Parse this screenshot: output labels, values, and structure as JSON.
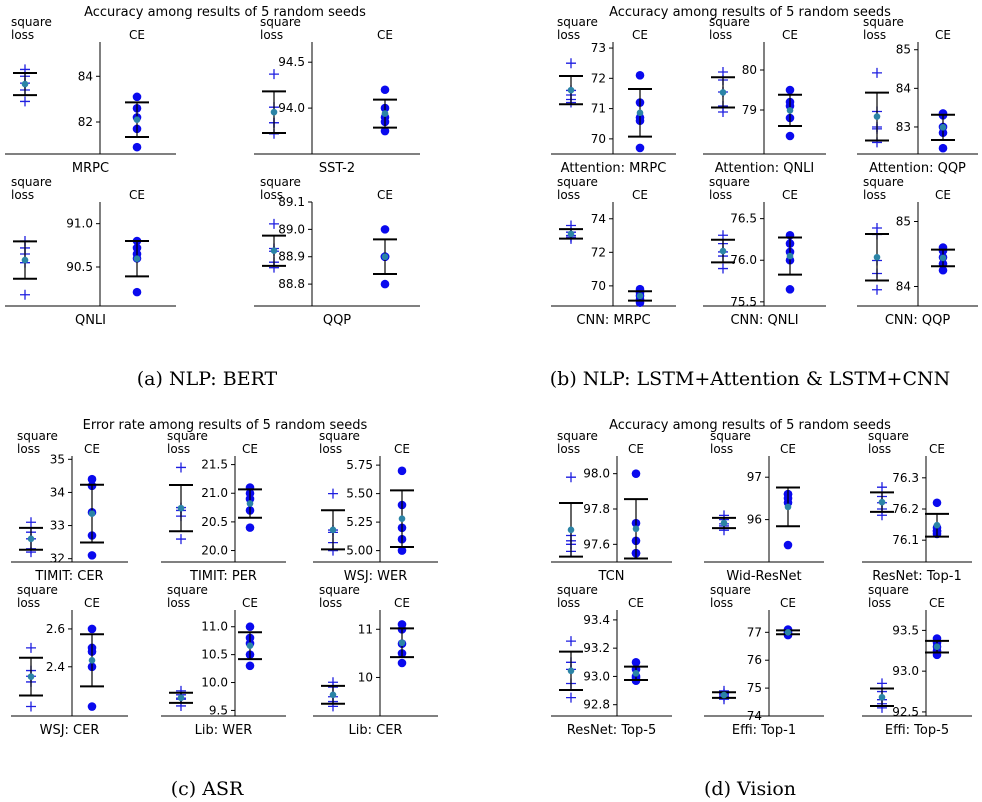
{
  "chart_data": {
    "type": "scatter",
    "series_labels": {
      "left": "square\nloss",
      "right": "CE"
    },
    "groups": [
      {
        "title": "Accuracy among results of 5 random seeds",
        "caption": "(a)  NLP: BERT",
        "panels": [
          {
            "label": "MRPC",
            "ylim": [
              80.6,
              85.5
            ],
            "ticks": [
              "82",
              "84"
            ],
            "sq": [
              84.3,
              84.0,
              83.7,
              83.4,
              82.9
            ],
            "ce": [
              83.1,
              82.6,
              82.2,
              81.7,
              80.9
            ]
          },
          {
            "label": "SST-2",
            "ylim": [
              93.5,
              94.72
            ],
            "ticks": [
              "94.0",
              "94.5"
            ],
            "sq": [
              94.37,
              94.01,
              93.84,
              93.84,
              93.72
            ],
            "ce": [
              94.2,
              94.0,
              93.9,
              93.85,
              93.75
            ]
          },
          {
            "label": "QNLI",
            "ylim": [
              90.05,
              91.25
            ],
            "ticks": [
              "90.5",
              "91.0"
            ],
            "sq": [
              90.8,
              90.72,
              90.65,
              90.55,
              90.18
            ],
            "ce": [
              90.8,
              90.72,
              90.65,
              90.6,
              90.21
            ]
          },
          {
            "label": "QQP",
            "ylim": [
              88.72,
              89.1
            ],
            "ticks": [
              "88.8",
              "88.9",
              "89.0",
              "89.1"
            ],
            "sq": [
              89.02,
              88.93,
              88.92,
              88.88,
              88.86
            ],
            "ce": [
              89.0,
              88.9,
              88.9,
              88.9,
              88.8
            ]
          }
        ]
      },
      {
        "title": "Accuracy among results of 5 random seeds",
        "caption": "(b)  NLP: LSTM+Attention & LSTM+CNN",
        "panels": [
          {
            "label": "Attention: MRPC",
            "ylim": [
              69.5,
              73.2
            ],
            "ticks": [
              "70",
              "71",
              "72",
              "73"
            ],
            "sq": [
              72.5,
              71.6,
              71.45,
              71.3,
              71.2
            ],
            "ce": [
              72.1,
              71.2,
              70.7,
              70.6,
              69.7
            ]
          },
          {
            "label": "Attention: QNLI",
            "ylim": [
              77.9,
              80.7
            ],
            "ticks": [
              "79",
              "80"
            ],
            "sq": [
              79.95,
              79.75,
              79.45,
              79.1,
              78.95
            ],
            "ce": [
              79.5,
              79.2,
              79.1,
              78.8,
              78.35
            ]
          },
          {
            "label": "Attention: QQP",
            "ylim": [
              82.3,
              85.2
            ],
            "ticks": [
              "83",
              "84",
              "85"
            ],
            "sq": [
              84.4,
              83.4,
              83.0,
              82.95,
              82.6
            ],
            "ce": [
              83.35,
              83.3,
              83.0,
              82.85,
              82.45
            ]
          },
          {
            "label": "CNN: MRPC",
            "ylim": [
              68.8,
              75.0
            ],
            "ticks": [
              "70",
              "72",
              "74"
            ],
            "sq": [
              73.6,
              73.2,
              73.0,
              72.9,
              72.8
            ],
            "ce": [
              69.8,
              69.6,
              69.4,
              69.2,
              69.0
            ]
          },
          {
            "label": "CNN: QNLI",
            "ylim": [
              75.45,
              76.7
            ],
            "ticks": [
              "75.5",
              "76.0",
              "76.5"
            ],
            "sq": [
              76.3,
              76.2,
              76.1,
              76.05,
              75.9
            ],
            "ce": [
              76.3,
              76.2,
              76.1,
              76.0,
              75.65
            ]
          },
          {
            "label": "CNN: QQP",
            "ylim": [
              83.7,
              85.3
            ],
            "ticks": [
              "84",
              "85"
            ],
            "sq": [
              84.9,
              84.8,
              84.4,
              84.2,
              83.95
            ],
            "ce": [
              84.6,
              84.55,
              84.45,
              84.35,
              84.25
            ]
          }
        ]
      },
      {
        "title": "Error rate among results of 5 random seeds",
        "caption": "(c)  ASR",
        "panels": [
          {
            "label": "TIMIT: CER",
            "ylim": [
              31.9,
              35.1
            ],
            "ticks": [
              "32",
              "33",
              "34",
              "35"
            ],
            "sq": [
              33.1,
              32.8,
              32.6,
              32.3,
              32.2
            ],
            "ce": [
              34.4,
              34.2,
              33.4,
              32.7,
              32.1
            ]
          },
          {
            "label": "TIMIT: PER",
            "ylim": [
              19.8,
              21.65
            ],
            "ticks": [
              "20.0",
              "20.5",
              "21.0",
              "21.5"
            ],
            "sq": [
              21.45,
              20.75,
              20.7,
              20.6,
              20.2
            ],
            "ce": [
              21.1,
              21.0,
              20.9,
              20.7,
              20.4
            ]
          },
          {
            "label": "WSJ: WER",
            "ylim": [
              4.9,
              5.83
            ],
            "ticks": [
              "5.00",
              "5.25",
              "5.50",
              "5.75"
            ],
            "sq": [
              5.5,
              5.18,
              5.16,
              5.07,
              5.0
            ],
            "ce": [
              5.7,
              5.4,
              5.2,
              5.1,
              5.0
            ]
          },
          {
            "label": "WSJ: CER",
            "ylim": [
              2.14,
              2.7
            ],
            "ticks": [
              "2.4",
              "2.6"
            ],
            "sq": [
              2.5,
              2.38,
              2.35,
              2.32,
              2.19
            ],
            "ce": [
              2.6,
              2.5,
              2.48,
              2.4,
              2.19
            ]
          },
          {
            "label": "Lib: WER",
            "ylim": [
              9.4,
              11.3
            ],
            "ticks": [
              "9.5",
              "10.0",
              "10.5",
              "11.0"
            ],
            "sq": [
              9.85,
              9.78,
              9.72,
              9.7,
              9.58
            ],
            "ce": [
              11.0,
              10.8,
              10.7,
              10.5,
              10.3
            ]
          },
          {
            "label": "Lib: CER",
            "ylim": [
              9.2,
              11.4
            ],
            "ticks": [
              "10",
              "11"
            ],
            "sq": [
              9.9,
              9.8,
              9.6,
              9.5,
              9.4
            ],
            "ce": [
              11.1,
              11.0,
              10.7,
              10.5,
              10.3
            ]
          }
        ]
      },
      {
        "title": "Accuracy among results of 5 random seeds",
        "caption": "(d)  Vision",
        "panels": [
          {
            "label": "TCN",
            "ylim": [
              97.5,
              98.1
            ],
            "ticks": [
              "97.6",
              "97.8",
              "98.0"
            ],
            "sq": [
              97.98,
              97.65,
              97.62,
              97.6,
              97.56
            ],
            "ce": [
              98.0,
              97.72,
              97.62,
              97.55,
              97.55
            ]
          },
          {
            "label": "Wid-ResNet",
            "ylim": [
              95.0,
              97.5
            ],
            "ticks": [
              "96",
              "97"
            ],
            "sq": [
              96.1,
              96.0,
              95.9,
              95.85,
              95.75
            ],
            "ce": [
              96.6,
              96.6,
              96.5,
              96.4,
              95.4
            ]
          },
          {
            "label": "ResNet: Top-1",
            "ylim": [
              76.03,
              76.37
            ],
            "ticks": [
              "76.1",
              "76.2",
              "76.3"
            ],
            "sq": [
              76.27,
              76.24,
              76.22,
              76.2,
              76.18
            ],
            "ce": [
              76.22,
              76.14,
              76.13,
              76.13,
              76.12
            ]
          },
          {
            "label": "ResNet: Top-5",
            "ylim": [
              92.72,
              93.47
            ],
            "ticks": [
              "92.8",
              "93.0",
              "93.2",
              "93.4"
            ],
            "sq": [
              93.25,
              93.1,
              93.05,
              92.95,
              92.85
            ],
            "ce": [
              93.1,
              93.05,
              93.0,
              92.99,
              92.97
            ]
          },
          {
            "label": "Effi: Top-1",
            "ylim": [
              74.0,
              77.8
            ],
            "ticks": [
              "74",
              "75",
              "76",
              "77"
            ],
            "sq": [
              74.9,
              74.8,
              74.75,
              74.7,
              74.6
            ],
            "ce": [
              77.1,
              77.05,
              77.0,
              76.95,
              76.9
            ]
          },
          {
            "label": "Effi: Top-5",
            "ylim": [
              92.45,
              93.75
            ],
            "ticks": [
              "92.5",
              "93.0",
              "93.5"
            ],
            "sq": [
              92.85,
              92.75,
              92.65,
              92.6,
              92.55
            ],
            "ce": [
              93.4,
              93.35,
              93.3,
              93.25,
              93.2
            ]
          }
        ]
      }
    ],
    "colors": {
      "square_loss": "#1f1fe0",
      "ce": "#0a0aee",
      "mean": "#2b84a6",
      "bar": "#000000"
    }
  }
}
